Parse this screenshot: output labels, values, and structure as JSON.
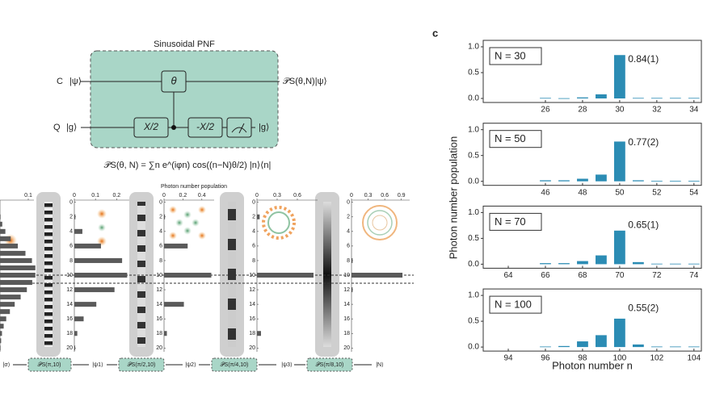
{
  "circuit": {
    "title": "Sinusoidal PNF",
    "control_label": "C",
    "control_state": "|ψ⟩",
    "qubit_label": "Q",
    "qubit_state": "|g⟩",
    "gate_theta": "θ",
    "gate_1": "X/2",
    "gate_2": "-X/2",
    "output_control": "𝒫S(θ,N)|ψ⟩",
    "output_qubit": "|g⟩",
    "formula": "𝒫S(θ, N) = ∑n e^(iφn) cos((n−N)θ/2) |n⟩⟨n|"
  },
  "panel_b": {
    "axis_title": "Photon number population",
    "labels": [
      "|σ⟩",
      "𝒫S(π,10)",
      "|ψ1⟩",
      "𝒫S(π/2,10)",
      "|ψ2⟩",
      "𝒫S(π/4,10)",
      "|ψ3⟩",
      "𝒫S(π/8,10)",
      "|N⟩"
    ]
  },
  "panel_c": {
    "letter": "c",
    "y_label": "Photon number population",
    "x_label": "Photon number n"
  },
  "chart_data": [
    {
      "type": "bar",
      "label": "N = 30",
      "annotation": "0.84(1)",
      "color": "#2b8cb4",
      "x": [
        26,
        27,
        28,
        29,
        30,
        31,
        32,
        33,
        34
      ],
      "values": [
        0.01,
        0.005,
        0.02,
        0.08,
        0.84,
        0.01,
        0.01,
        0.01,
        0.01
      ],
      "xlim": [
        22.65,
        34.4
      ],
      "xticks": [
        26,
        28,
        30,
        32,
        34
      ],
      "ylim": [
        0,
        1
      ],
      "yticks": [
        {
          "value": 0,
          "label": "0.0"
        },
        {
          "value": 0.5,
          "label": "0.5"
        },
        {
          "value": 1,
          "label": "1.0"
        }
      ]
    },
    {
      "type": "bar",
      "label": "N = 50",
      "annotation": "0.77(2)",
      "color": "#2b8cb4",
      "x": [
        46,
        47,
        48,
        49,
        50,
        51,
        52,
        53,
        54
      ],
      "values": [
        0.02,
        0.02,
        0.05,
        0.13,
        0.77,
        0.02,
        0.01,
        0.01,
        0.01
      ],
      "xlim": [
        42.65,
        54.4
      ],
      "xticks": [
        46,
        48,
        50,
        52,
        54
      ],
      "ylim": [
        0,
        1
      ],
      "yticks": [
        {
          "value": 0,
          "label": "0.0"
        },
        {
          "value": 0.5,
          "label": "0.5"
        },
        {
          "value": 1,
          "label": "1.0"
        }
      ]
    },
    {
      "type": "bar",
      "label": "N = 70",
      "annotation": "0.65(1)",
      "color": "#2b8cb4",
      "x": [
        66,
        67,
        68,
        69,
        70,
        71,
        72,
        73,
        74
      ],
      "values": [
        0.02,
        0.02,
        0.06,
        0.17,
        0.65,
        0.04,
        0.01,
        0.01,
        0.01
      ],
      "xlim": [
        62.65,
        74.4
      ],
      "xticks": [
        64,
        66,
        68,
        70,
        72,
        74
      ],
      "ylim": [
        0,
        1
      ],
      "yticks": [
        {
          "value": 0,
          "label": "0.0"
        },
        {
          "value": 0.5,
          "label": "0.5"
        },
        {
          "value": 1,
          "label": "1.0"
        }
      ]
    },
    {
      "type": "bar",
      "label": "N = 100",
      "annotation": "0.55(2)",
      "color": "#2b8cb4",
      "x": [
        96,
        97,
        98,
        99,
        100,
        101,
        102,
        103,
        104
      ],
      "values": [
        0.01,
        0.02,
        0.11,
        0.23,
        0.55,
        0.05,
        0.01,
        0.01,
        0.01
      ],
      "xlim": [
        92.65,
        104.4
      ],
      "xticks": [
        94,
        96,
        98,
        100,
        102,
        104
      ],
      "ylim": [
        0,
        1
      ],
      "yticks": [
        {
          "value": 0,
          "label": "0.0"
        },
        {
          "value": 0.5,
          "label": "0.5"
        },
        {
          "value": 1,
          "label": "1.0"
        }
      ]
    },
    {
      "type": "hbar",
      "color": "#5a5a5a",
      "x": [
        0,
        1,
        2,
        3,
        4,
        5,
        6,
        7,
        8,
        9,
        10,
        11,
        12,
        13,
        14,
        15,
        16,
        17,
        18,
        19,
        20
      ],
      "values": [
        0,
        0,
        0.002,
        0.008,
        0.019,
        0.038,
        0.063,
        0.09,
        0.113,
        0.125,
        0.125,
        0.114,
        0.095,
        0.073,
        0.052,
        0.035,
        0.022,
        0.013,
        0.007,
        0.004,
        0.002
      ],
      "xlim": [
        -0.3,
        20.3
      ],
      "ylim": [
        0,
        0.12
      ],
      "yticks": [
        0.1
      ]
    },
    {
      "type": "hbar",
      "color": "#5a5a5a",
      "x": [
        0,
        1,
        2,
        3,
        4,
        5,
        6,
        7,
        8,
        9,
        10,
        11,
        12,
        13,
        14,
        15,
        16,
        17,
        18,
        19,
        20
      ],
      "values": [
        0,
        0,
        0.005,
        0,
        0.038,
        0,
        0.126,
        0,
        0.226,
        0,
        0.25,
        0,
        0.19,
        0,
        0.104,
        0,
        0.044,
        0,
        0.014,
        0,
        0.004
      ],
      "xlim": [
        -0.3,
        20.3
      ],
      "xticks": [
        0,
        2,
        4,
        6,
        8,
        10,
        12,
        14,
        16,
        18,
        20
      ],
      "ylim": [
        0,
        0.26
      ],
      "yticks": [
        0,
        0.1,
        0.2
      ]
    },
    {
      "type": "hbar",
      "color": "#5a5a5a",
      "x": [
        0,
        1,
        2,
        3,
        4,
        5,
        6,
        7,
        8,
        9,
        10,
        11,
        12,
        13,
        14,
        15,
        16,
        17,
        18,
        19,
        20
      ],
      "values": [
        0,
        0,
        0.01,
        0,
        0,
        0,
        0.25,
        0,
        0,
        0,
        0.5,
        0,
        0,
        0,
        0.21,
        0,
        0,
        0,
        0.03,
        0,
        0
      ],
      "xlim": [
        -0.3,
        20.3
      ],
      "xticks": [
        0,
        2,
        4,
        6,
        8,
        10,
        12,
        14,
        16,
        18,
        20
      ],
      "ylim": [
        0,
        0.53
      ],
      "yticks": [
        0,
        0.2,
        0.4
      ]
    },
    {
      "type": "hbar",
      "color": "#5a5a5a",
      "x": [
        0,
        1,
        2,
        3,
        4,
        5,
        6,
        7,
        8,
        9,
        10,
        11,
        12,
        13,
        14,
        15,
        16,
        17,
        18,
        19,
        20
      ],
      "values": [
        0,
        0,
        0.04,
        0,
        0,
        0,
        0,
        0,
        0,
        0,
        0.84,
        0,
        0,
        0,
        0,
        0,
        0,
        0,
        0.06,
        0,
        0
      ],
      "xlim": [
        -0.3,
        20.3
      ],
      "xticks": [
        0,
        2,
        4,
        6,
        8,
        10,
        12,
        14,
        16,
        18,
        20
      ],
      "ylim": [
        0,
        0.9
      ],
      "yticks": [
        0,
        0.3,
        0.6
      ]
    },
    {
      "type": "hbar",
      "color": "#5a5a5a",
      "x": [
        0,
        1,
        2,
        3,
        4,
        5,
        6,
        7,
        8,
        9,
        10,
        11,
        12,
        13,
        14,
        15,
        16,
        17,
        18,
        19,
        20
      ],
      "values": [
        0,
        0,
        0,
        0,
        0,
        0,
        0,
        0,
        0.02,
        0,
        0.92,
        0,
        0.02,
        0,
        0,
        0,
        0,
        0,
        0,
        0,
        0
      ],
      "xlim": [
        -0.3,
        20.3
      ],
      "xticks": [
        0,
        2,
        4,
        6,
        8,
        10,
        12,
        14,
        16,
        18,
        20
      ],
      "ylim": [
        0,
        1.05
      ],
      "yticks": [
        0,
        0.3,
        0.6,
        0.9
      ]
    }
  ]
}
